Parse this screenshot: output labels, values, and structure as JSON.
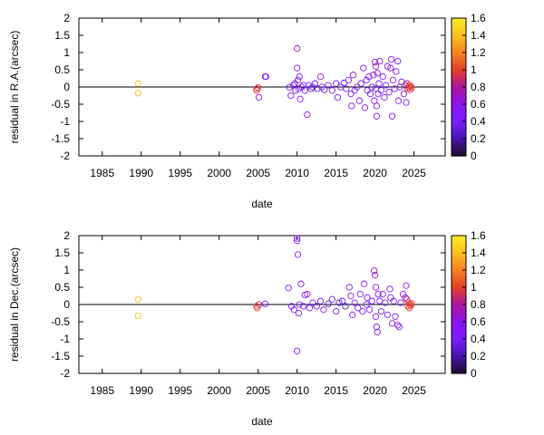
{
  "chart_data": [
    {
      "type": "scatter",
      "xlabel": "date",
      "ylabel": "residual in R.A.(arcsec)",
      "xlim": [
        1982,
        2029
      ],
      "ylim": [
        -2,
        2
      ],
      "xticks": [
        1985,
        1990,
        1995,
        2000,
        2005,
        2010,
        2015,
        2020,
        2025
      ],
      "yticks": [
        -2,
        -1.5,
        -1,
        -0.5,
        0,
        0.5,
        1,
        1.5,
        2
      ],
      "zero_line": true,
      "colorbar": {
        "min": 0,
        "max": 1.6,
        "ticks": [
          0,
          0.2,
          0.4,
          0.6,
          0.8,
          1,
          1.2,
          1.4,
          1.6
        ],
        "palette": "black-purple-red-orange-yellow"
      },
      "points": [
        [
          1989.6,
          0.1,
          1.4
        ],
        [
          1989.6,
          -0.18,
          1.4
        ],
        [
          2004.8,
          -0.05,
          1.0
        ],
        [
          2004.8,
          -0.1,
          1.0
        ],
        [
          2005.0,
          -0.02,
          0.9
        ],
        [
          2005.1,
          -0.3,
          0.6
        ],
        [
          2005.9,
          0.3,
          0.4
        ],
        [
          2006.0,
          0.3,
          0.4
        ],
        [
          2009.0,
          -0.01,
          0.5
        ],
        [
          2009.2,
          -0.25,
          0.6
        ],
        [
          2009.5,
          0.05,
          0.5
        ],
        [
          2009.7,
          0.1,
          0.6
        ],
        [
          2009.8,
          -0.1,
          0.5
        ],
        [
          2010.0,
          1.12,
          0.8
        ],
        [
          2010.0,
          0.55,
          0.6
        ],
        [
          2010.1,
          0.2,
          0.5
        ],
        [
          2010.2,
          -0.05,
          0.5
        ],
        [
          2010.3,
          0.3,
          0.6
        ],
        [
          2010.4,
          -0.35,
          0.6
        ],
        [
          2010.6,
          0.0,
          0.4
        ],
        [
          2010.8,
          0.05,
          0.5
        ],
        [
          2011.0,
          -0.1,
          0.5
        ],
        [
          2011.3,
          -0.8,
          0.6
        ],
        [
          2011.5,
          0.05,
          0.4
        ],
        [
          2011.8,
          -0.05,
          0.3
        ],
        [
          2012.0,
          0.0,
          0.4
        ],
        [
          2012.3,
          0.1,
          0.4
        ],
        [
          2012.6,
          -0.05,
          0.3
        ],
        [
          2013.0,
          0.3,
          0.5
        ],
        [
          2013.2,
          0.0,
          0.4
        ],
        [
          2013.5,
          -0.08,
          0.3
        ],
        [
          2014.0,
          0.05,
          0.4
        ],
        [
          2014.5,
          -0.1,
          0.4
        ],
        [
          2015.0,
          0.1,
          0.5
        ],
        [
          2015.2,
          -0.3,
          0.4
        ],
        [
          2015.6,
          0.0,
          0.3
        ],
        [
          2016.0,
          0.12,
          0.4
        ],
        [
          2016.3,
          -0.05,
          0.4
        ],
        [
          2016.6,
          0.2,
          0.5
        ],
        [
          2016.9,
          -0.2,
          0.4
        ],
        [
          2017.0,
          -0.55,
          0.6
        ],
        [
          2017.2,
          0.35,
          0.6
        ],
        [
          2017.4,
          -0.1,
          0.4
        ],
        [
          2017.7,
          0.0,
          0.4
        ],
        [
          2018.0,
          -0.4,
          0.5
        ],
        [
          2018.2,
          0.1,
          0.4
        ],
        [
          2018.5,
          0.55,
          0.6
        ],
        [
          2018.7,
          -0.6,
          0.6
        ],
        [
          2018.9,
          0.2,
          0.5
        ],
        [
          2019.0,
          -0.1,
          0.4
        ],
        [
          2019.2,
          0.3,
          0.5
        ],
        [
          2019.4,
          -0.2,
          0.4
        ],
        [
          2019.6,
          0.0,
          0.3
        ],
        [
          2019.8,
          0.35,
          0.6
        ],
        [
          2019.9,
          -0.4,
          0.5
        ],
        [
          2020.0,
          0.72,
          0.7
        ],
        [
          2020.1,
          0.6,
          0.7
        ],
        [
          2020.1,
          -0.05,
          0.4
        ],
        [
          2020.2,
          -0.55,
          0.6
        ],
        [
          2020.2,
          -0.85,
          0.6
        ],
        [
          2020.3,
          0.4,
          0.6
        ],
        [
          2020.4,
          -0.2,
          0.5
        ],
        [
          2020.5,
          0.1,
          0.4
        ],
        [
          2020.6,
          0.75,
          0.6
        ],
        [
          2020.8,
          -0.1,
          0.4
        ],
        [
          2021.0,
          0.3,
          0.5
        ],
        [
          2021.2,
          -0.3,
          0.5
        ],
        [
          2021.4,
          0.05,
          0.4
        ],
        [
          2021.6,
          0.6,
          0.6
        ],
        [
          2021.8,
          -0.15,
          0.4
        ],
        [
          2022.0,
          0.55,
          0.6
        ],
        [
          2022.1,
          0.8,
          0.7
        ],
        [
          2022.2,
          -0.85,
          0.6
        ],
        [
          2022.3,
          0.2,
          0.5
        ],
        [
          2022.5,
          -0.05,
          0.4
        ],
        [
          2022.7,
          0.45,
          0.5
        ],
        [
          2022.9,
          0.75,
          0.6
        ],
        [
          2023.0,
          -0.4,
          0.5
        ],
        [
          2023.2,
          0.0,
          0.4
        ],
        [
          2023.4,
          0.15,
          0.5
        ],
        [
          2023.7,
          -0.2,
          0.5
        ],
        [
          2023.9,
          0.05,
          0.6
        ],
        [
          2024.0,
          -0.45,
          0.6
        ],
        [
          2024.1,
          0.1,
          0.8
        ],
        [
          2024.2,
          -0.05,
          0.9
        ],
        [
          2024.3,
          0.0,
          1.0
        ],
        [
          2024.4,
          0.05,
          1.0
        ],
        [
          2024.5,
          -0.08,
          1.0
        ],
        [
          2024.6,
          0.02,
          1.0
        ],
        [
          2024.7,
          -0.02,
          0.95
        ]
      ]
    },
    {
      "type": "scatter",
      "xlabel": "date",
      "ylabel": "residual in Dec.(arcsec)",
      "xlim": [
        1982,
        2029
      ],
      "ylim": [
        -2,
        2
      ],
      "xticks": [
        1985,
        1990,
        1995,
        2000,
        2005,
        2010,
        2015,
        2020,
        2025
      ],
      "yticks": [
        -2,
        -1.5,
        -1,
        -0.5,
        0,
        0.5,
        1,
        1.5,
        2
      ],
      "zero_line": true,
      "colorbar": {
        "min": 0,
        "max": 1.6,
        "ticks": [
          0,
          0.2,
          0.4,
          0.6,
          0.8,
          1,
          1.2,
          1.4,
          1.6
        ],
        "palette": "black-purple-red-orange-yellow"
      },
      "points": [
        [
          1989.6,
          0.15,
          1.4
        ],
        [
          1989.6,
          -0.33,
          1.4
        ],
        [
          2004.8,
          -0.05,
          1.0
        ],
        [
          2004.9,
          -0.1,
          1.0
        ],
        [
          2005.1,
          0.0,
          0.9
        ],
        [
          2005.9,
          0.02,
          0.4
        ],
        [
          2008.9,
          0.48,
          0.5
        ],
        [
          2009.3,
          -0.05,
          0.5
        ],
        [
          2009.6,
          -0.15,
          0.6
        ],
        [
          2010.0,
          1.92,
          0.6
        ],
        [
          2010.0,
          1.85,
          0.6
        ],
        [
          2010.1,
          1.45,
          0.6
        ],
        [
          2010.0,
          -1.35,
          0.5
        ],
        [
          2010.2,
          -0.25,
          0.5
        ],
        [
          2010.3,
          0.0,
          0.4
        ],
        [
          2010.5,
          0.6,
          0.5
        ],
        [
          2010.8,
          -0.05,
          0.4
        ],
        [
          2011.0,
          0.28,
          0.5
        ],
        [
          2011.3,
          0.3,
          0.5
        ],
        [
          2011.6,
          -0.1,
          0.4
        ],
        [
          2012.0,
          0.05,
          0.4
        ],
        [
          2012.5,
          -0.05,
          0.3
        ],
        [
          2013.0,
          0.1,
          0.4
        ],
        [
          2013.4,
          -0.15,
          0.4
        ],
        [
          2014.0,
          0.02,
          0.3
        ],
        [
          2014.5,
          0.15,
          0.4
        ],
        [
          2015.0,
          -0.2,
          0.4
        ],
        [
          2015.4,
          0.05,
          0.3
        ],
        [
          2015.8,
          0.1,
          0.4
        ],
        [
          2016.2,
          -0.05,
          0.3
        ],
        [
          2016.7,
          0.5,
          0.5
        ],
        [
          2016.9,
          0.25,
          0.5
        ],
        [
          2017.1,
          -0.3,
          0.5
        ],
        [
          2017.4,
          0.05,
          0.4
        ],
        [
          2017.8,
          -0.1,
          0.4
        ],
        [
          2018.1,
          0.3,
          0.5
        ],
        [
          2018.4,
          -0.2,
          0.4
        ],
        [
          2018.6,
          0.6,
          0.6
        ],
        [
          2018.9,
          0.0,
          0.4
        ],
        [
          2019.0,
          0.2,
          0.5
        ],
        [
          2019.3,
          -0.15,
          0.4
        ],
        [
          2019.6,
          0.1,
          0.4
        ],
        [
          2019.9,
          0.98,
          0.7
        ],
        [
          2020.0,
          0.85,
          0.7
        ],
        [
          2020.1,
          0.5,
          0.6
        ],
        [
          2020.1,
          -0.35,
          0.5
        ],
        [
          2020.2,
          -0.65,
          0.6
        ],
        [
          2020.3,
          -0.8,
          0.6
        ],
        [
          2020.4,
          0.3,
          0.5
        ],
        [
          2020.6,
          0.1,
          0.4
        ],
        [
          2020.8,
          -0.2,
          0.5
        ],
        [
          2021.0,
          0.3,
          0.5
        ],
        [
          2021.3,
          0.05,
          0.4
        ],
        [
          2021.6,
          -0.3,
          0.5
        ],
        [
          2021.9,
          0.45,
          0.5
        ],
        [
          2022.0,
          0.2,
          0.5
        ],
        [
          2022.2,
          -0.55,
          0.5
        ],
        [
          2022.4,
          0.1,
          0.4
        ],
        [
          2022.6,
          -0.35,
          0.5
        ],
        [
          2022.9,
          -0.6,
          0.5
        ],
        [
          2023.1,
          -0.65,
          0.5
        ],
        [
          2023.3,
          0.05,
          0.4
        ],
        [
          2023.6,
          0.3,
          0.5
        ],
        [
          2023.9,
          0.2,
          0.6
        ],
        [
          2024.0,
          0.55,
          0.6
        ],
        [
          2024.1,
          0.15,
          0.9
        ],
        [
          2024.2,
          -0.05,
          1.0
        ],
        [
          2024.3,
          0.05,
          1.0
        ],
        [
          2024.4,
          -0.1,
          1.0
        ],
        [
          2024.5,
          0.0,
          1.0
        ],
        [
          2024.6,
          -0.03,
          1.0
        ],
        [
          2024.7,
          0.03,
          0.95
        ]
      ]
    }
  ]
}
